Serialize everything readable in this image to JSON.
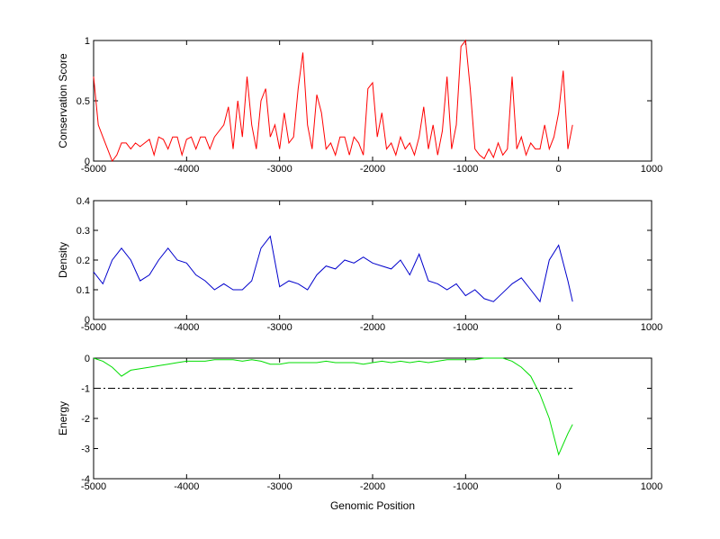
{
  "chart_data": [
    {
      "type": "line",
      "ylabel": "Conservation Score",
      "xlim": [
        -5000,
        1000
      ],
      "ylim": [
        0,
        1
      ],
      "xticks": [
        -5000,
        -4000,
        -3000,
        -2000,
        -1000,
        0,
        1000
      ],
      "yticks": [
        0,
        0.5,
        1
      ],
      "series": [
        {
          "color": "#ff0000",
          "x": [
            -5000,
            -4950,
            -4900,
            -4850,
            -4800,
            -4750,
            -4700,
            -4650,
            -4600,
            -4550,
            -4500,
            -4450,
            -4400,
            -4350,
            -4300,
            -4250,
            -4200,
            -4150,
            -4100,
            -4050,
            -4000,
            -3950,
            -3900,
            -3850,
            -3800,
            -3750,
            -3700,
            -3650,
            -3600,
            -3550,
            -3500,
            -3450,
            -3400,
            -3350,
            -3300,
            -3250,
            -3200,
            -3150,
            -3100,
            -3050,
            -3000,
            -2950,
            -2900,
            -2850,
            -2800,
            -2750,
            -2700,
            -2650,
            -2600,
            -2550,
            -2500,
            -2450,
            -2400,
            -2350,
            -2300,
            -2250,
            -2200,
            -2150,
            -2100,
            -2050,
            -2000,
            -1950,
            -1900,
            -1850,
            -1800,
            -1750,
            -1700,
            -1650,
            -1600,
            -1550,
            -1500,
            -1450,
            -1400,
            -1350,
            -1300,
            -1250,
            -1200,
            -1150,
            -1100,
            -1050,
            -1000,
            -950,
            -900,
            -850,
            -800,
            -750,
            -700,
            -650,
            -600,
            -550,
            -500,
            -450,
            -400,
            -350,
            -300,
            -250,
            -200,
            -150,
            -100,
            -50,
            0,
            50,
            100,
            150
          ],
          "values": [
            0.7,
            0.3,
            0.2,
            0.1,
            0,
            0.05,
            0.15,
            0.15,
            0.1,
            0.15,
            0.12,
            0.15,
            0.18,
            0.05,
            0.2,
            0.18,
            0.1,
            0.2,
            0.2,
            0.05,
            0.18,
            0.2,
            0.1,
            0.2,
            0.2,
            0.1,
            0.2,
            0.25,
            0.3,
            0.45,
            0.1,
            0.5,
            0.2,
            0.7,
            0.3,
            0.1,
            0.5,
            0.6,
            0.2,
            0.3,
            0.1,
            0.4,
            0.15,
            0.2,
            0.6,
            0.9,
            0.3,
            0.1,
            0.55,
            0.4,
            0.1,
            0.15,
            0.05,
            0.2,
            0.2,
            0.05,
            0.2,
            0.15,
            0.05,
            0.6,
            0.65,
            0.2,
            0.4,
            0.1,
            0.15,
            0.05,
            0.2,
            0.1,
            0.15,
            0.05,
            0.2,
            0.45,
            0.1,
            0.3,
            0.05,
            0.25,
            0.7,
            0.1,
            0.3,
            0.95,
            1.0,
            0.6,
            0.1,
            0.05,
            0.02,
            0.1,
            0.03,
            0.15,
            0.05,
            0.1,
            0.7,
            0.1,
            0.2,
            0.05,
            0.15,
            0.1,
            0.1,
            0.3,
            0.1,
            0.2,
            0.4,
            0.75,
            0.1,
            0.3
          ]
        }
      ]
    },
    {
      "type": "line",
      "ylabel": "Density",
      "xlim": [
        -5000,
        1000
      ],
      "ylim": [
        0,
        0.4
      ],
      "xticks": [
        -5000,
        -4000,
        -3000,
        -2000,
        -1000,
        0,
        1000
      ],
      "yticks": [
        0,
        0.1,
        0.2,
        0.3,
        0.4
      ],
      "series": [
        {
          "color": "#0000cc",
          "x": [
            -5000,
            -4900,
            -4800,
            -4700,
            -4600,
            -4500,
            -4400,
            -4300,
            -4200,
            -4100,
            -4000,
            -3900,
            -3800,
            -3700,
            -3600,
            -3500,
            -3400,
            -3300,
            -3200,
            -3100,
            -3000,
            -2900,
            -2800,
            -2700,
            -2600,
            -2500,
            -2400,
            -2300,
            -2200,
            -2100,
            -2000,
            -1900,
            -1800,
            -1700,
            -1600,
            -1500,
            -1400,
            -1300,
            -1200,
            -1100,
            -1000,
            -900,
            -800,
            -700,
            -600,
            -500,
            -400,
            -300,
            -200,
            -100,
            0,
            100,
            150
          ],
          "values": [
            0.16,
            0.12,
            0.2,
            0.24,
            0.2,
            0.13,
            0.15,
            0.2,
            0.24,
            0.2,
            0.19,
            0.15,
            0.13,
            0.1,
            0.12,
            0.1,
            0.1,
            0.13,
            0.24,
            0.28,
            0.11,
            0.13,
            0.12,
            0.1,
            0.15,
            0.18,
            0.17,
            0.2,
            0.19,
            0.21,
            0.19,
            0.18,
            0.17,
            0.2,
            0.15,
            0.22,
            0.13,
            0.12,
            0.1,
            0.12,
            0.08,
            0.1,
            0.07,
            0.06,
            0.09,
            0.12,
            0.14,
            0.1,
            0.06,
            0.2,
            0.25,
            0.13,
            0.06
          ]
        }
      ]
    },
    {
      "type": "line",
      "ylabel": "Energy",
      "xlabel": "Genomic Position",
      "xlim": [
        -5000,
        1000
      ],
      "ylim": [
        -4,
        0
      ],
      "xticks": [
        -5000,
        -4000,
        -3000,
        -2000,
        -1000,
        0,
        1000
      ],
      "yticks": [
        -4,
        -3,
        -2,
        -1,
        0
      ],
      "series": [
        {
          "color": "#00dd00",
          "x": [
            -5000,
            -4900,
            -4800,
            -4700,
            -4600,
            -4500,
            -4400,
            -4300,
            -4200,
            -4100,
            -4000,
            -3900,
            -3800,
            -3700,
            -3600,
            -3500,
            -3400,
            -3300,
            -3200,
            -3100,
            -3000,
            -2900,
            -2800,
            -2700,
            -2600,
            -2500,
            -2400,
            -2300,
            -2200,
            -2100,
            -2000,
            -1900,
            -1800,
            -1700,
            -1600,
            -1500,
            -1400,
            -1300,
            -1200,
            -1100,
            -1000,
            -900,
            -800,
            -700,
            -600,
            -500,
            -400,
            -300,
            -200,
            -100,
            0,
            100,
            150
          ],
          "values": [
            0,
            -0.1,
            -0.3,
            -0.6,
            -0.4,
            -0.35,
            -0.3,
            -0.25,
            -0.2,
            -0.15,
            -0.1,
            -0.1,
            -0.1,
            -0.05,
            -0.05,
            -0.05,
            -0.1,
            -0.05,
            -0.1,
            -0.2,
            -0.2,
            -0.15,
            -0.15,
            -0.15,
            -0.15,
            -0.1,
            -0.15,
            -0.15,
            -0.15,
            -0.2,
            -0.15,
            -0.1,
            -0.15,
            -0.1,
            -0.15,
            -0.1,
            -0.15,
            -0.1,
            -0.05,
            -0.05,
            -0.05,
            -0.05,
            0,
            0,
            0,
            -0.1,
            -0.3,
            -0.6,
            -1.2,
            -2,
            -3.2,
            -2.5,
            -2.2
          ]
        },
        {
          "color": "#000000",
          "style": "dashdot",
          "x": [
            -5000,
            150
          ],
          "values": [
            -1,
            -1
          ]
        }
      ]
    }
  ]
}
